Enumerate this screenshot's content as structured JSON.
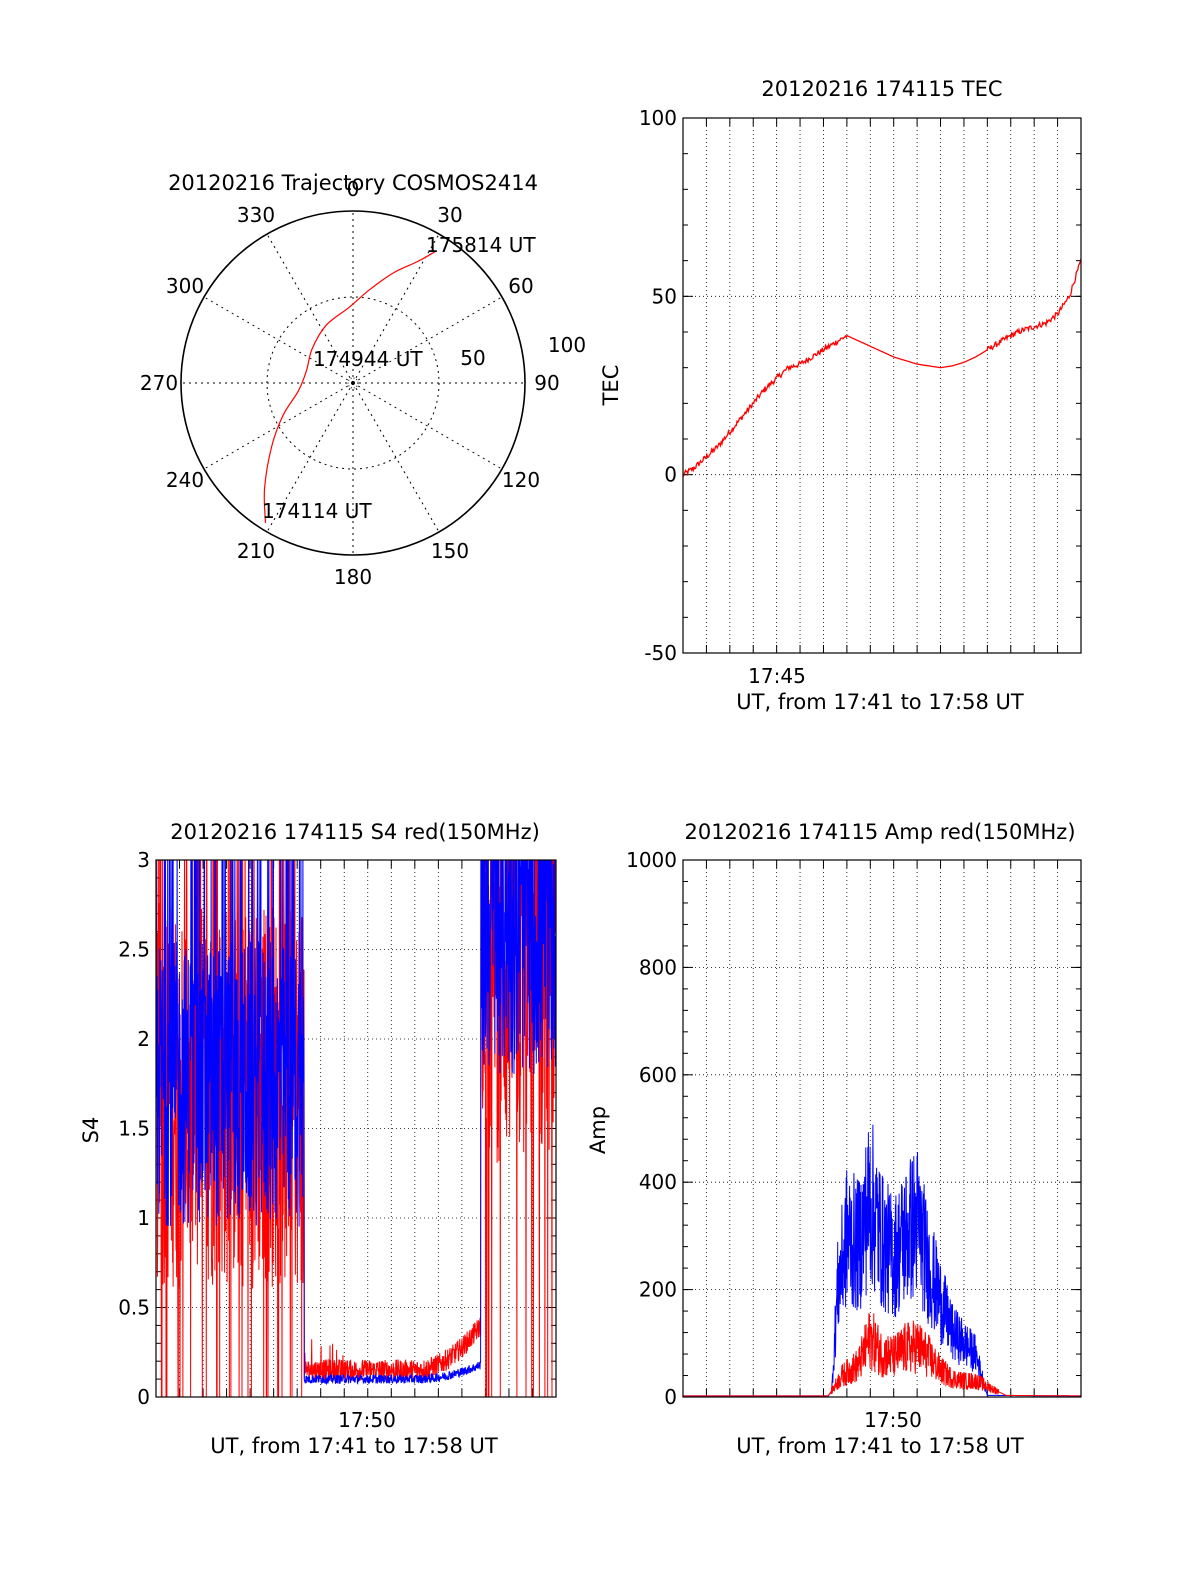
{
  "colors": {
    "red": "#ff0000",
    "blue": "#0000ff",
    "axis": "#000000",
    "grid": "#000000"
  },
  "chart_data": [
    {
      "id": "trajectory",
      "type": "polar",
      "title": "20120216 Trajectory COSMOS2414",
      "azimuth_labels": [
        "0",
        "30",
        "60",
        "90",
        "120",
        "150",
        "180",
        "210",
        "240",
        "270",
        "300",
        "330"
      ],
      "radial_labels": [
        "50",
        "100"
      ],
      "radial_max": 100,
      "annotations": [
        "175814 UT",
        "174944 UT",
        "174114 UT"
      ],
      "series": [
        {
          "color": "red",
          "points_az_el": [
            [
              212,
              96
            ],
            [
              220,
              80
            ],
            [
              232,
              60
            ],
            [
              245,
              45
            ],
            [
              262,
              32
            ],
            [
              285,
              28
            ],
            [
              310,
              31
            ],
            [
              335,
              37
            ],
            [
              357,
              44
            ],
            [
              10,
              55
            ],
            [
              20,
              68
            ],
            [
              28,
              80
            ],
            [
              32,
              90
            ]
          ]
        }
      ],
      "grid": true
    },
    {
      "id": "tec",
      "type": "line",
      "title": "20120216 174115 TEC",
      "xlabel": "UT, from 17:41 to 17:58 UT",
      "ylabel": "TEC",
      "xlim": [
        0,
        17
      ],
      "ylim": [
        -50,
        100
      ],
      "y_ticks": [
        -50,
        0,
        50,
        100
      ],
      "x_tick_labels": [
        {
          "x": 4,
          "label": "17:45"
        }
      ],
      "grid": true,
      "series": [
        {
          "color": "red",
          "x": [
            0,
            0.5,
            1,
            1.5,
            2,
            2.5,
            3,
            3.5,
            4,
            4.5,
            5,
            5.5,
            6,
            6.5,
            7,
            7.5,
            8,
            8.5,
            9,
            9.5,
            10,
            10.5,
            11,
            11.5,
            12,
            12.5,
            13,
            13.5,
            14,
            14.5,
            15,
            15.5,
            16,
            16.5,
            17
          ],
          "y": [
            0,
            2,
            5,
            8,
            12,
            16,
            20,
            24,
            27,
            30,
            31,
            33,
            35,
            37,
            39,
            37.5,
            36,
            34.5,
            33,
            32,
            31,
            30.5,
            30,
            30.5,
            31.5,
            33,
            35,
            37,
            39,
            40.5,
            41.5,
            42.5,
            45,
            50,
            60
          ]
        }
      ]
    },
    {
      "id": "s4",
      "type": "line",
      "title": "20120216 174115 S4 red(150MHz)",
      "xlabel": "UT, from 17:41 to 17:58 UT",
      "ylabel": "S4",
      "xlim": [
        0,
        17
      ],
      "ylim": [
        0,
        3
      ],
      "y_ticks": [
        0,
        0.5,
        1,
        1.5,
        2,
        2.5,
        3
      ],
      "x_tick_labels": [
        {
          "x": 9,
          "label": "17:50"
        }
      ],
      "grid": true,
      "series": [
        {
          "color": "red",
          "noise": "high",
          "segments": [
            [
              0,
              6.3,
              1.7
            ],
            [
              6.3,
              13.8,
              0.15
            ],
            [
              13.8,
              17,
              2.4
            ]
          ]
        },
        {
          "color": "blue",
          "noise": "high",
          "segments": [
            [
              0,
              6.3,
              1.75
            ],
            [
              6.3,
              13.8,
              0.1
            ],
            [
              13.8,
              17,
              2.6
            ]
          ]
        }
      ]
    },
    {
      "id": "amp",
      "type": "line",
      "title": "20120216 174115 Amp red(150MHz)",
      "xlabel": "UT, from 17:41 to 17:58 UT",
      "ylabel": "Amp",
      "xlim": [
        0,
        17
      ],
      "ylim": [
        0,
        1000
      ],
      "y_ticks": [
        0,
        200,
        400,
        600,
        800,
        1000
      ],
      "x_tick_labels": [
        {
          "x": 9,
          "label": "17:50"
        }
      ],
      "grid": true,
      "series": [
        {
          "color": "blue",
          "x": [
            0,
            6.2,
            6.35,
            6.6,
            7,
            7.5,
            8,
            8.5,
            9,
            9.5,
            10,
            10.5,
            11,
            11.5,
            12,
            12.5,
            13,
            17
          ],
          "y": [
            2,
            2,
            10,
            200,
            300,
            280,
            370,
            290,
            260,
            300,
            330,
            240,
            180,
            120,
            100,
            80,
            3,
            2
          ]
        },
        {
          "color": "red",
          "x": [
            0,
            6.2,
            6.4,
            6.8,
            7.5,
            8,
            8.5,
            9,
            9.5,
            10,
            10.5,
            11,
            11.5,
            12,
            12.5,
            13,
            13.8,
            17
          ],
          "y": [
            2,
            2,
            15,
            40,
            60,
            110,
            80,
            75,
            90,
            95,
            75,
            50,
            35,
            30,
            30,
            20,
            3,
            2
          ]
        }
      ]
    }
  ]
}
